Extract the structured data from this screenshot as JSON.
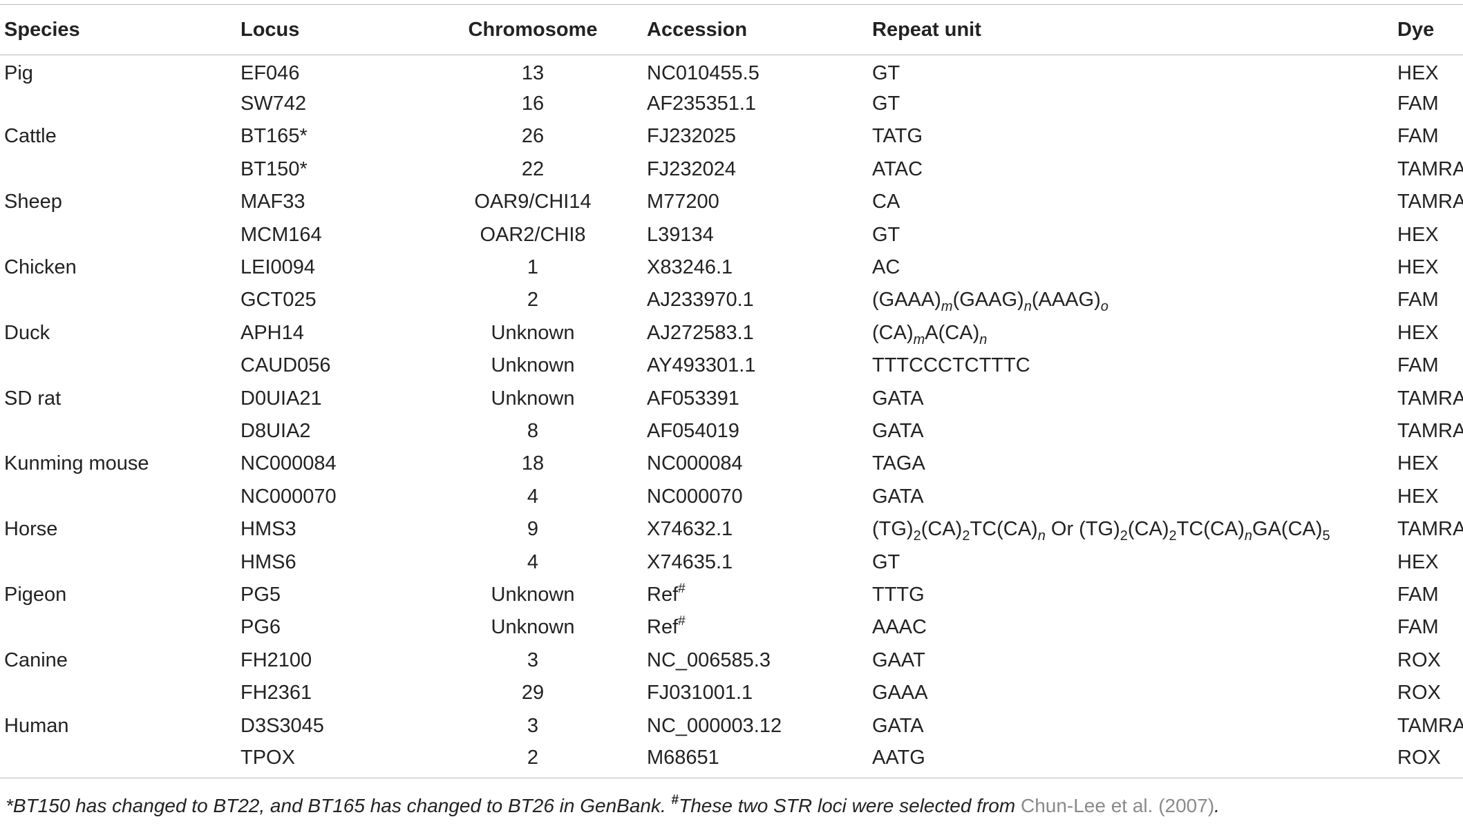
{
  "table": {
    "headers": {
      "species": "Species",
      "locus": "Locus",
      "chromosome": "Chromosome",
      "accession": "Accession",
      "repeat_unit": "Repeat unit",
      "dye": "Dye"
    },
    "rows": [
      {
        "species": "Pig",
        "locus": "EF046",
        "chromosome": "13",
        "accession": "NC010455.5",
        "repeat_unit": "GT",
        "dye": "HEX"
      },
      {
        "species": "",
        "locus": "SW742",
        "chromosome": "16",
        "accession": "AF235351.1",
        "repeat_unit": "GT",
        "dye": "FAM"
      },
      {
        "species": "Cattle",
        "locus": "BT165*",
        "chromosome": "26",
        "accession": "FJ232025",
        "repeat_unit": "TATG",
        "dye": "FAM"
      },
      {
        "species": "",
        "locus": "BT150*",
        "chromosome": "22",
        "accession": "FJ232024",
        "repeat_unit": "ATAC",
        "dye": "TAMRA"
      },
      {
        "species": "Sheep",
        "locus": "MAF33",
        "chromosome": "OAR9/CHI14",
        "accession": "M77200",
        "repeat_unit": "CA",
        "dye": "TAMRA"
      },
      {
        "species": "",
        "locus": "MCM164",
        "chromosome": "OAR2/CHI8",
        "accession": "L39134",
        "repeat_unit": "GT",
        "dye": "HEX"
      },
      {
        "species": "Chicken",
        "locus": "LEI0094",
        "chromosome": "1",
        "accession": "X83246.1",
        "repeat_unit": "AC",
        "dye": "HEX"
      },
      {
        "species": "",
        "locus": "GCT025",
        "chromosome": "2",
        "accession": "AJ233970.1",
        "repeat_unit": "(GAAA)m(GAAG)n(AAAG)o",
        "dye": "FAM"
      },
      {
        "species": "Duck",
        "locus": "APH14",
        "chromosome": "Unknown",
        "accession": "AJ272583.1",
        "repeat_unit": "(CA)mA(CA)n",
        "dye": "HEX"
      },
      {
        "species": "",
        "locus": "CAUD056",
        "chromosome": "Unknown",
        "accession": "AY493301.1",
        "repeat_unit": "TTTCCCTCTTTC",
        "dye": "FAM"
      },
      {
        "species": "SD rat",
        "locus": "D0UIA21",
        "chromosome": "Unknown",
        "accession": "AF053391",
        "repeat_unit": "GATA",
        "dye": "TAMRA"
      },
      {
        "species": "",
        "locus": "D8UIA2",
        "chromosome": "8",
        "accession": "AF054019",
        "repeat_unit": "GATA",
        "dye": "TAMRA"
      },
      {
        "species": "Kunming mouse",
        "locus": "NC000084",
        "chromosome": "18",
        "accession": "NC000084",
        "repeat_unit": "TAGA",
        "dye": "HEX"
      },
      {
        "species": "",
        "locus": "NC000070",
        "chromosome": "4",
        "accession": "NC000070",
        "repeat_unit": "GATA",
        "dye": "HEX"
      },
      {
        "species": "Horse",
        "locus": "HMS3",
        "chromosome": "9",
        "accession": "X74632.1",
        "repeat_unit": "(TG)2(CA)2TC(CA)n Or (TG)2(CA)2TC(CA)nGA(CA)5",
        "dye": "TAMRA"
      },
      {
        "species": "",
        "locus": "HMS6",
        "chromosome": "4",
        "accession": "X74635.1",
        "repeat_unit": "GT",
        "dye": "HEX"
      },
      {
        "species": "Pigeon",
        "locus": "PG5",
        "chromosome": "Unknown",
        "accession": "Ref#",
        "repeat_unit": "TTTG",
        "dye": "FAM"
      },
      {
        "species": "",
        "locus": "PG6",
        "chromosome": "Unknown",
        "accession": "Ref#",
        "repeat_unit": "AAAC",
        "dye": "FAM"
      },
      {
        "species": "Canine",
        "locus": "FH2100",
        "chromosome": "3",
        "accession": "NC_006585.3",
        "repeat_unit": "GAAT",
        "dye": "ROX"
      },
      {
        "species": "",
        "locus": "FH2361",
        "chromosome": "29",
        "accession": "FJ031001.1",
        "repeat_unit": "GAAA",
        "dye": "ROX"
      },
      {
        "species": "Human",
        "locus": "D3S3045",
        "chromosome": "3",
        "accession": "NC_000003.12",
        "repeat_unit": "GATA",
        "dye": "TAMRA"
      },
      {
        "species": "",
        "locus": "TPOX",
        "chromosome": "2",
        "accession": "M68651",
        "repeat_unit": "AATG",
        "dye": "ROX"
      }
    ]
  },
  "footnote": {
    "part1": "*BT150 has changed to BT22, and BT165 has changed to BT26 in GenBank. ",
    "mark": "#",
    "part2": "These two STR loci were selected from ",
    "ref_link": "Chun-Lee et al. (2007)",
    "end": "."
  },
  "colors": {
    "text": "#222222",
    "rule": "#b9b9b9",
    "link": "#8a8a8a"
  }
}
